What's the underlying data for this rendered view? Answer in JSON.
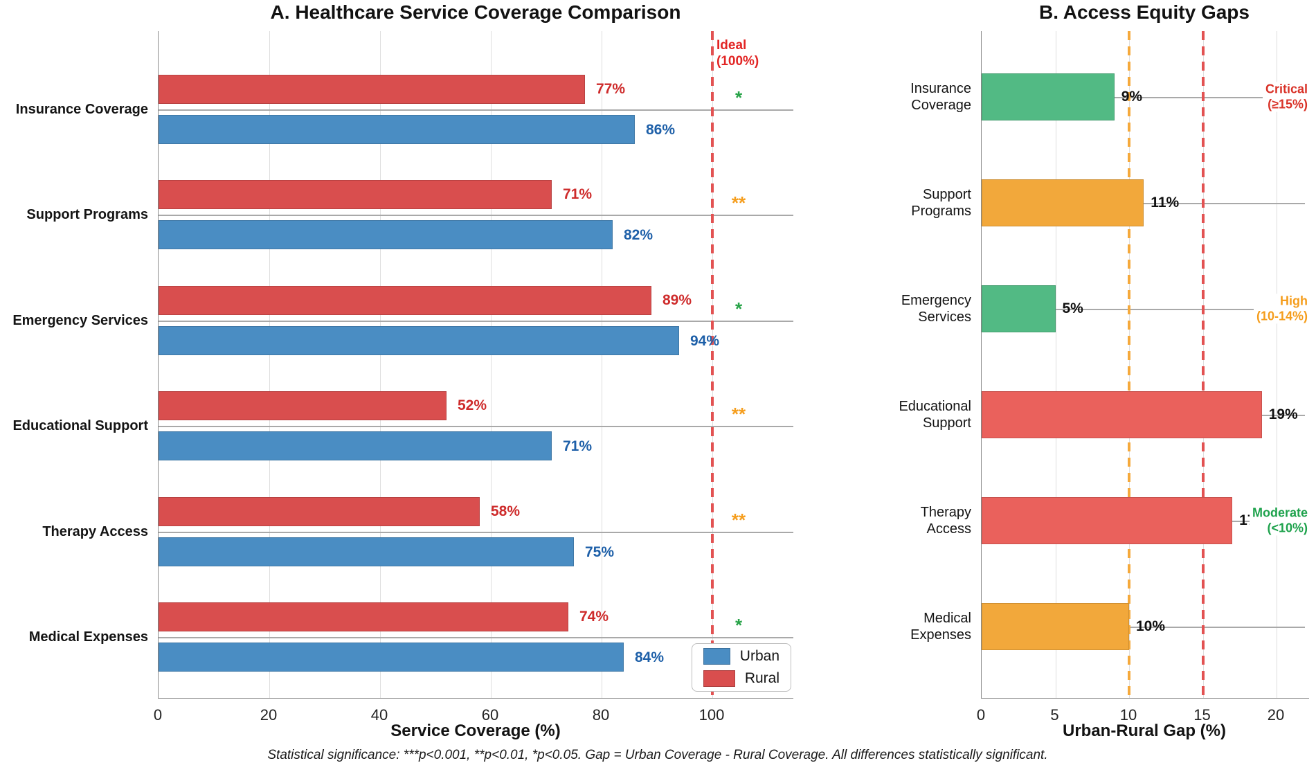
{
  "figure": {
    "footer": "Statistical significance: ***p<0.001, **p<0.01, *p<0.05. Gap = Urban Coverage - Rural Coverage. All differences statistically significant."
  },
  "colors": {
    "urban_blue": "#4A8DC3",
    "rural_red": "#D94E4E",
    "gap_green": "#52BA84",
    "gap_orange": "#F2A83B",
    "gap_salmon": "#EA615C",
    "ideal_line_red": "#E25252",
    "threshold_orange_line": "#F5A93B",
    "threshold_red_line": "#E25252",
    "star_green": "#27A348",
    "star_orange": "#F59D1C",
    "value_red": "#CE2B2B",
    "value_blue": "#1D5FA8",
    "value_black": "#111111",
    "label_critical_red": "#D93228",
    "label_high_orange": "#F59D1C",
    "label_moderate_green": "#1EA24C",
    "ideal_text_red": "#E22625"
  },
  "chart_data": [
    {
      "type": "bar",
      "orientation": "horizontal",
      "title": "A. Healthcare Service Coverage Comparison",
      "categories": [
        "Insurance Coverage",
        "Support Programs",
        "Emergency Services",
        "Educational Support",
        "Therapy Access",
        "Medical Expenses"
      ],
      "series": [
        {
          "name": "Urban",
          "color_key": "urban_blue",
          "values": [
            86,
            82,
            94,
            71,
            75,
            84
          ]
        },
        {
          "name": "Rural",
          "color_key": "rural_red",
          "values": [
            77,
            71,
            89,
            52,
            58,
            74
          ]
        }
      ],
      "value_label_format": "{v}%",
      "significance": [
        "*",
        "**",
        "*",
        "**",
        "**",
        "*"
      ],
      "significance_color_keys": [
        "star_green",
        "star_orange",
        "star_green",
        "star_orange",
        "star_orange",
        "star_green"
      ],
      "reference_line": {
        "x": 100,
        "label": "Ideal\n(100%)",
        "style": "dashed",
        "color_key": "ideal_line_red"
      },
      "xlabel": "Service Coverage (%)",
      "xticks": [
        0,
        20,
        40,
        60,
        80,
        100
      ],
      "xlim": [
        0,
        114.6
      ],
      "grid": true,
      "legend": {
        "position": "lower right",
        "entries": [
          {
            "label": "Urban",
            "color_key": "urban_blue"
          },
          {
            "label": "Rural",
            "color_key": "rural_red"
          }
        ]
      }
    },
    {
      "type": "bar",
      "orientation": "horizontal",
      "title": "B. Access Equity Gaps",
      "categories": [
        "Insurance\nCoverage",
        "Support\nPrograms",
        "Emergency\nServices",
        "Educational\nSupport",
        "Therapy\nAccess",
        "Medical\nExpenses"
      ],
      "values": [
        9,
        11,
        5,
        19,
        17,
        10
      ],
      "bar_color_keys": [
        "gap_green",
        "gap_orange",
        "gap_green",
        "gap_salmon",
        "gap_salmon",
        "gap_orange"
      ],
      "value_label_format": "{v}%",
      "reference_lines": [
        {
          "x": 10,
          "style": "dashed",
          "color_key": "threshold_orange_line"
        },
        {
          "x": 15,
          "style": "dashed",
          "color_key": "threshold_red_line"
        }
      ],
      "threshold_annotations": [
        {
          "row": 0,
          "label": "Critical\n(≥15%)",
          "color_key": "label_critical_red"
        },
        {
          "row": 2,
          "label": "High\n(10-14%)",
          "color_key": "label_high_orange"
        },
        {
          "row": 4,
          "label": "Moderate\n(<10%)",
          "color_key": "label_moderate_green"
        }
      ],
      "xlabel": "Urban-Rural Gap (%)",
      "xticks": [
        0,
        5,
        10,
        15,
        20
      ],
      "xlim": [
        0,
        22.2
      ],
      "grid": true
    }
  ]
}
